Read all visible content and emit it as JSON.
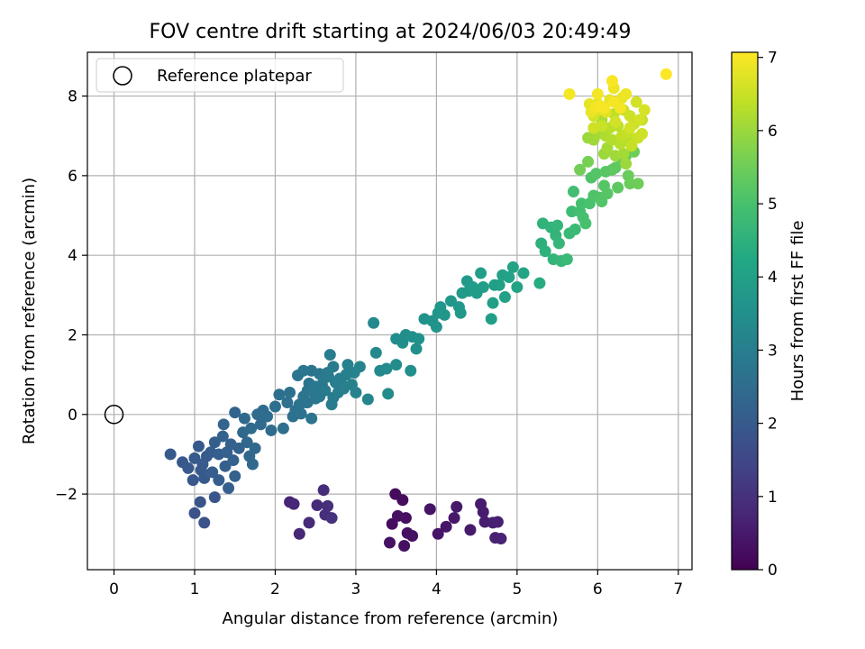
{
  "chart_data": {
    "type": "scatter",
    "title": "FOV centre drift starting at 2024/06/03 20:49:49",
    "xlabel": "Angular distance from reference (arcmin)",
    "ylabel": "Rotation from reference (arcmin)",
    "xlim": [
      -0.33,
      7.17
    ],
    "ylim": [
      -3.9,
      9.1
    ],
    "xticks": [
      0,
      1,
      2,
      3,
      4,
      5,
      6,
      7
    ],
    "yticks": [
      -2,
      0,
      2,
      4,
      6,
      8
    ],
    "grid": true,
    "legend": {
      "placement": "top-left",
      "label": "Reference platepar"
    },
    "reference_point": {
      "x": 0,
      "y": 0
    },
    "colorbar": {
      "label": "Hours from first FF file",
      "range": [
        0,
        7.07
      ],
      "ticks": [
        0,
        1,
        2,
        3,
        4,
        5,
        6,
        7
      ],
      "colormap": "viridis"
    },
    "series": [
      {
        "points": [
          [
            3.45,
            -2.75,
            0.25
          ],
          [
            3.49,
            -2.0,
            0.2
          ],
          [
            3.52,
            -2.55,
            0.3
          ],
          [
            3.58,
            -2.15,
            0.22
          ],
          [
            3.62,
            -2.6,
            0.28
          ],
          [
            3.64,
            -2.98,
            0.32
          ],
          [
            3.7,
            -3.05,
            0.35
          ],
          [
            3.6,
            -3.3,
            0.3
          ],
          [
            3.42,
            -3.22,
            0.33
          ],
          [
            3.92,
            -2.38,
            0.38
          ],
          [
            4.02,
            -3.0,
            0.4
          ],
          [
            4.12,
            -2.82,
            0.42
          ],
          [
            4.22,
            -2.6,
            0.45
          ],
          [
            4.25,
            -2.32,
            0.48
          ],
          [
            4.42,
            -2.9,
            0.5
          ],
          [
            4.55,
            -2.25,
            0.53
          ],
          [
            4.58,
            -2.45,
            0.55
          ],
          [
            4.6,
            -2.7,
            0.58
          ],
          [
            4.7,
            -2.72,
            0.6
          ],
          [
            4.76,
            -2.7,
            0.62
          ],
          [
            4.73,
            -3.1,
            0.65
          ],
          [
            4.8,
            -3.12,
            0.68
          ],
          [
            2.18,
            -2.2,
            0.75
          ],
          [
            2.23,
            -2.25,
            0.78
          ],
          [
            2.3,
            -3.0,
            0.8
          ],
          [
            2.42,
            -2.72,
            0.83
          ],
          [
            2.52,
            -2.28,
            0.86
          ],
          [
            2.6,
            -1.9,
            0.9
          ],
          [
            2.62,
            -2.52,
            0.92
          ],
          [
            2.65,
            -2.3,
            0.95
          ],
          [
            2.7,
            -2.6,
            1.0
          ],
          [
            1.0,
            -2.48,
            1.8
          ],
          [
            1.07,
            -2.2,
            1.82
          ],
          [
            1.12,
            -2.72,
            1.78
          ],
          [
            1.25,
            -2.08,
            1.85
          ],
          [
            0.7,
            -1.0,
            2.0
          ],
          [
            0.85,
            -1.2,
            1.95
          ],
          [
            0.92,
            -1.35,
            1.97
          ],
          [
            1.0,
            -1.1,
            1.98
          ],
          [
            1.05,
            -0.8,
            2.0
          ],
          [
            1.08,
            -1.4,
            1.96
          ],
          [
            1.12,
            -1.6,
            1.98
          ],
          [
            0.98,
            -1.65,
            1.94
          ],
          [
            1.1,
            -1.25,
            2.02
          ],
          [
            1.15,
            -1.05,
            2.05
          ],
          [
            1.2,
            -0.95,
            2.08
          ],
          [
            1.25,
            -0.7,
            2.1
          ],
          [
            1.3,
            -1.0,
            2.12
          ],
          [
            1.22,
            -1.45,
            2.07
          ],
          [
            1.3,
            -1.65,
            2.1
          ],
          [
            1.38,
            -1.3,
            2.15
          ],
          [
            1.4,
            -0.95,
            2.17
          ],
          [
            1.45,
            -0.75,
            2.2
          ],
          [
            1.35,
            -0.55,
            2.22
          ],
          [
            1.48,
            -1.15,
            2.18
          ],
          [
            1.5,
            -1.55,
            2.2
          ],
          [
            1.55,
            -0.85,
            2.23
          ],
          [
            1.42,
            -1.85,
            2.15
          ],
          [
            1.36,
            -0.25,
            2.25
          ],
          [
            1.5,
            0.05,
            2.3
          ],
          [
            1.6,
            -0.45,
            2.35
          ],
          [
            1.62,
            -0.1,
            2.4
          ],
          [
            1.65,
            -0.7,
            2.35
          ],
          [
            1.7,
            -0.35,
            2.42
          ],
          [
            1.75,
            -0.85,
            2.4
          ],
          [
            1.78,
            0.0,
            2.48
          ],
          [
            1.82,
            -0.25,
            2.45
          ],
          [
            1.85,
            0.1,
            2.5
          ],
          [
            1.72,
            -1.25,
            2.38
          ],
          [
            1.68,
            -1.05,
            2.36
          ],
          [
            1.9,
            -0.05,
            2.52
          ],
          [
            1.95,
            -0.4,
            2.5
          ],
          [
            2.0,
            0.2,
            2.55
          ],
          [
            2.05,
            0.5,
            2.58
          ],
          [
            2.1,
            -0.35,
            2.56
          ],
          [
            2.15,
            0.3,
            2.6
          ],
          [
            2.18,
            0.55,
            2.62
          ],
          [
            2.22,
            -0.05,
            2.64
          ],
          [
            2.25,
            0.1,
            2.66
          ],
          [
            2.3,
            0.25,
            2.68
          ],
          [
            2.32,
            0.02,
            2.66
          ],
          [
            2.35,
            0.45,
            2.7
          ],
          [
            2.4,
            0.3,
            2.72
          ],
          [
            2.45,
            -0.1,
            2.72
          ],
          [
            2.28,
            0.98,
            2.75
          ],
          [
            2.35,
            1.1,
            2.76
          ],
          [
            2.4,
            0.6,
            2.78
          ],
          [
            2.48,
            0.55,
            2.8
          ],
          [
            2.5,
            0.7,
            2.82
          ],
          [
            2.55,
            0.45,
            2.84
          ],
          [
            2.6,
            0.9,
            2.86
          ],
          [
            2.62,
            0.6,
            2.88
          ],
          [
            2.65,
            1.05,
            2.9
          ],
          [
            2.68,
            1.5,
            2.92
          ],
          [
            2.7,
            0.25,
            2.94
          ],
          [
            2.72,
            1.2,
            2.95
          ],
          [
            2.75,
            0.8,
            2.96
          ],
          [
            2.78,
            0.55,
            2.98
          ],
          [
            2.8,
            0.9,
            3.0
          ],
          [
            2.85,
            0.65,
            3.02
          ],
          [
            2.88,
            1.0,
            3.04
          ],
          [
            2.9,
            1.25,
            3.06
          ],
          [
            2.95,
            0.75,
            3.08
          ],
          [
            2.98,
            1.05,
            3.1
          ],
          [
            3.05,
            1.2,
            3.12
          ],
          [
            3.0,
            0.55,
            3.1
          ],
          [
            2.45,
            1.1,
            2.7
          ],
          [
            2.55,
            1.02,
            2.76
          ],
          [
            2.42,
            0.78,
            2.74
          ],
          [
            2.58,
            0.75,
            2.8
          ],
          [
            2.66,
            0.95,
            2.9
          ],
          [
            2.72,
            0.42,
            2.92
          ],
          [
            2.82,
            0.78,
            2.98
          ],
          [
            2.92,
            1.05,
            3.05
          ],
          [
            2.5,
            0.4,
            2.78
          ],
          [
            2.38,
            0.3,
            2.72
          ],
          [
            3.15,
            0.38,
            3.2
          ],
          [
            3.22,
            2.3,
            3.3
          ],
          [
            3.25,
            1.55,
            3.3
          ],
          [
            3.3,
            1.1,
            3.32
          ],
          [
            3.38,
            1.15,
            3.34
          ],
          [
            3.4,
            0.52,
            3.36
          ],
          [
            3.5,
            1.25,
            3.38
          ],
          [
            3.5,
            1.9,
            3.42
          ],
          [
            3.58,
            1.8,
            3.44
          ],
          [
            3.62,
            2.0,
            3.46
          ],
          [
            3.68,
            1.1,
            3.48
          ],
          [
            3.7,
            1.95,
            3.5
          ],
          [
            3.75,
            1.65,
            3.52
          ],
          [
            3.78,
            1.9,
            3.55
          ],
          [
            3.85,
            2.4,
            3.58
          ],
          [
            3.95,
            2.35,
            3.6
          ],
          [
            4.0,
            2.2,
            3.62
          ],
          [
            4.02,
            2.55,
            3.65
          ],
          [
            4.05,
            2.7,
            3.68
          ],
          [
            4.1,
            2.5,
            3.7
          ],
          [
            4.18,
            2.85,
            3.72
          ],
          [
            4.28,
            2.7,
            3.74
          ],
          [
            4.3,
            2.55,
            3.76
          ],
          [
            4.32,
            3.05,
            3.8
          ],
          [
            4.38,
            3.35,
            3.82
          ],
          [
            4.4,
            3.1,
            3.84
          ],
          [
            4.45,
            3.2,
            3.86
          ],
          [
            4.5,
            3.05,
            3.88
          ],
          [
            4.55,
            3.55,
            3.9
          ],
          [
            4.58,
            3.2,
            3.92
          ],
          [
            4.68,
            2.4,
            3.94
          ],
          [
            4.7,
            2.8,
            3.96
          ],
          [
            4.72,
            3.25,
            3.98
          ],
          [
            4.78,
            3.25,
            4.0
          ],
          [
            4.82,
            3.5,
            4.02
          ],
          [
            4.85,
            2.95,
            4.04
          ],
          [
            4.9,
            3.45,
            4.05
          ],
          [
            4.95,
            3.7,
            4.08
          ],
          [
            5.0,
            3.2,
            4.1
          ],
          [
            5.08,
            3.55,
            4.12
          ],
          [
            5.28,
            3.3,
            4.35
          ],
          [
            5.3,
            4.3,
            4.5
          ],
          [
            5.32,
            4.8,
            4.55
          ],
          [
            5.35,
            4.1,
            4.52
          ],
          [
            5.42,
            4.7,
            4.58
          ],
          [
            5.45,
            3.9,
            4.6
          ],
          [
            5.48,
            4.5,
            4.62
          ],
          [
            5.5,
            4.75,
            4.64
          ],
          [
            5.52,
            4.3,
            4.66
          ],
          [
            5.55,
            3.85,
            4.68
          ],
          [
            5.62,
            3.9,
            4.72
          ],
          [
            5.65,
            4.55,
            4.75
          ],
          [
            5.68,
            5.1,
            4.85
          ],
          [
            5.7,
            5.6,
            4.9
          ],
          [
            5.72,
            4.65,
            4.78
          ],
          [
            5.78,
            5.1,
            4.92
          ],
          [
            5.8,
            5.3,
            4.95
          ],
          [
            5.82,
            4.95,
            4.96
          ],
          [
            5.85,
            4.8,
            4.98
          ],
          [
            5.9,
            5.3,
            5.02
          ],
          [
            5.92,
            5.95,
            5.1
          ],
          [
            5.95,
            5.5,
            5.08
          ],
          [
            5.98,
            6.05,
            5.15
          ],
          [
            6.02,
            5.45,
            5.12
          ],
          [
            6.05,
            5.35,
            5.14
          ],
          [
            6.08,
            5.75,
            5.18
          ],
          [
            6.1,
            6.1,
            5.22
          ],
          [
            6.12,
            5.55,
            5.2
          ],
          [
            6.18,
            6.15,
            5.25
          ],
          [
            6.22,
            6.2,
            5.3
          ],
          [
            6.25,
            5.7,
            5.28
          ],
          [
            6.3,
            6.4,
            5.35
          ],
          [
            6.35,
            6.5,
            5.4
          ],
          [
            6.38,
            6.0,
            5.42
          ],
          [
            6.4,
            5.8,
            5.45
          ],
          [
            6.45,
            6.6,
            5.5
          ],
          [
            6.5,
            5.8,
            5.48
          ],
          [
            5.78,
            6.15,
            5.55
          ],
          [
            5.88,
            6.35,
            5.6
          ],
          [
            5.88,
            6.95,
            6.0
          ],
          [
            5.95,
            6.9,
            6.05
          ],
          [
            6.0,
            7.05,
            6.1
          ],
          [
            6.05,
            7.4,
            6.15
          ],
          [
            6.08,
            6.55,
            6.0
          ],
          [
            6.1,
            7.0,
            6.2
          ],
          [
            6.12,
            6.7,
            6.1
          ],
          [
            6.15,
            7.2,
            6.3
          ],
          [
            6.18,
            6.9,
            6.25
          ],
          [
            6.2,
            7.55,
            6.4
          ],
          [
            6.22,
            6.5,
            6.05
          ],
          [
            6.25,
            7.25,
            6.35
          ],
          [
            6.28,
            6.8,
            6.3
          ],
          [
            6.3,
            7.0,
            6.4
          ],
          [
            6.32,
            7.65,
            6.5
          ],
          [
            6.35,
            6.3,
            6.0
          ],
          [
            6.38,
            7.1,
            6.45
          ],
          [
            6.4,
            7.5,
            6.55
          ],
          [
            6.42,
            6.75,
            6.45
          ],
          [
            6.45,
            7.3,
            6.5
          ],
          [
            6.48,
            7.85,
            6.6
          ],
          [
            6.5,
            6.95,
            6.5
          ],
          [
            6.52,
            7.4,
            6.6
          ],
          [
            6.55,
            7.05,
            6.55
          ],
          [
            6.58,
            7.65,
            6.65
          ],
          [
            5.95,
            7.5,
            6.6
          ],
          [
            6.0,
            7.8,
            6.7
          ],
          [
            6.05,
            7.25,
            6.5
          ],
          [
            6.1,
            7.6,
            6.75
          ],
          [
            6.15,
            7.9,
            6.8
          ],
          [
            6.2,
            8.2,
            6.9
          ],
          [
            6.22,
            7.35,
            6.6
          ],
          [
            6.3,
            7.95,
            6.85
          ],
          [
            6.35,
            8.05,
            6.9
          ],
          [
            6.4,
            7.2,
            6.6
          ],
          [
            5.95,
            7.2,
            6.55
          ],
          [
            6.02,
            7.65,
            6.72
          ],
          [
            5.9,
            7.8,
            6.8
          ],
          [
            5.92,
            7.6,
            6.85
          ],
          [
            5.65,
            8.05,
            6.95
          ],
          [
            5.98,
            7.72,
            6.95
          ],
          [
            6.03,
            7.75,
            7.0
          ],
          [
            6.08,
            7.7,
            7.0
          ],
          [
            6.0,
            8.05,
            6.95
          ],
          [
            6.18,
            8.38,
            7.02
          ],
          [
            6.28,
            7.7,
            6.98
          ],
          [
            6.2,
            7.85,
            6.97
          ],
          [
            6.85,
            8.55,
            7.05
          ],
          [
            6.55,
            7.4,
            6.4
          ],
          [
            6.38,
            6.9,
            6.3
          ],
          [
            6.32,
            6.55,
            6.1
          ]
        ]
      }
    ]
  }
}
